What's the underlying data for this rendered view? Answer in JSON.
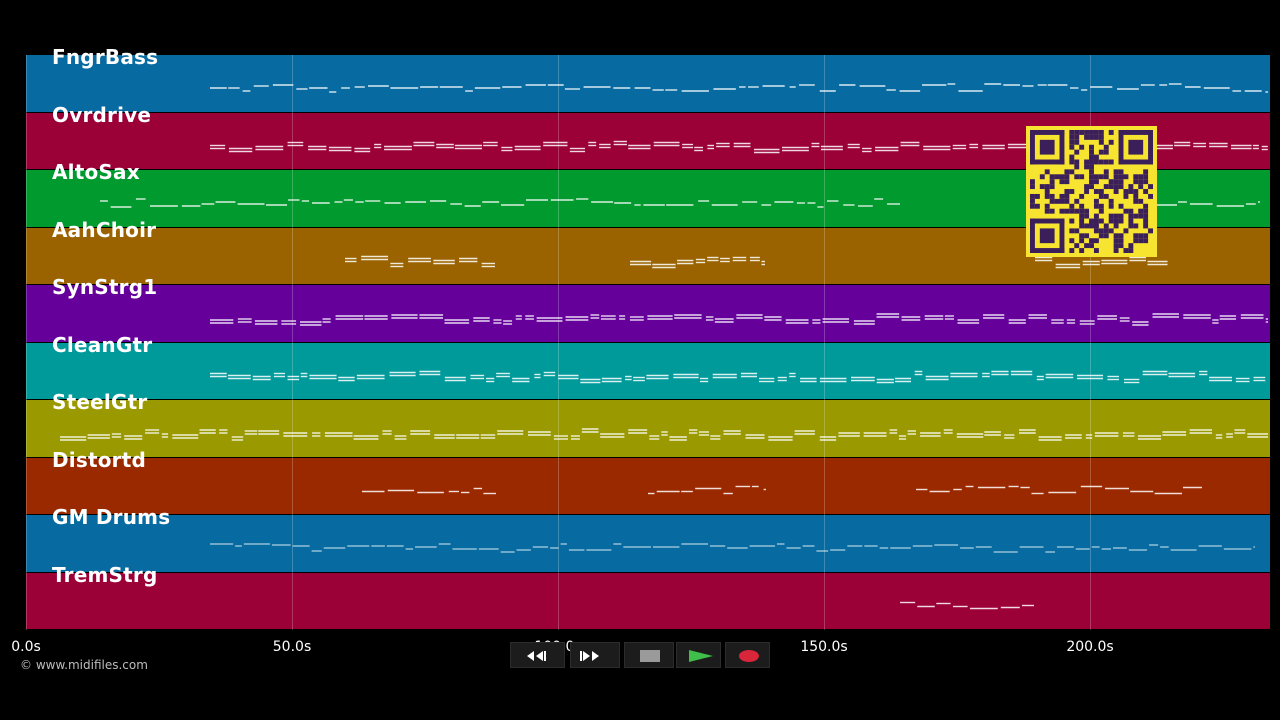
{
  "tracks": [
    {
      "name": "FngrBass",
      "color": "#076ba1"
    },
    {
      "name": "Ovrdrive",
      "color": "#9b0036"
    },
    {
      "name": "AltoSax",
      "color": "#009a2f"
    },
    {
      "name": "AahChoir",
      "color": "#9a6300"
    },
    {
      "name": "SynStrg1",
      "color": "#65009b"
    },
    {
      "name": "CleanGtr",
      "color": "#009a9a"
    },
    {
      "name": "SteelGtr",
      "color": "#9a9a00"
    },
    {
      "name": "Distortd",
      "color": "#9b2900"
    },
    {
      "name": "GM Drums",
      "color": "#076ba1"
    },
    {
      "name": "TremStrg",
      "color": "#9b0036"
    }
  ],
  "timeline": {
    "ticks": [
      "0.0s",
      "50.0s",
      "100.0s",
      "150.0s",
      "200.0s"
    ]
  },
  "copyright": "© www.midifiles.com",
  "transport": {
    "rewind_icon": "rewind-icon",
    "forward_icon": "fast-forward-icon",
    "stop_icon": "stop-icon",
    "play_icon": "play-icon",
    "record_icon": "record-icon",
    "play_color": "#3fbf4a",
    "record_color": "#d9263a"
  },
  "qr_code": {
    "color": "#f7e430",
    "module_color": "#3b1f5a"
  }
}
